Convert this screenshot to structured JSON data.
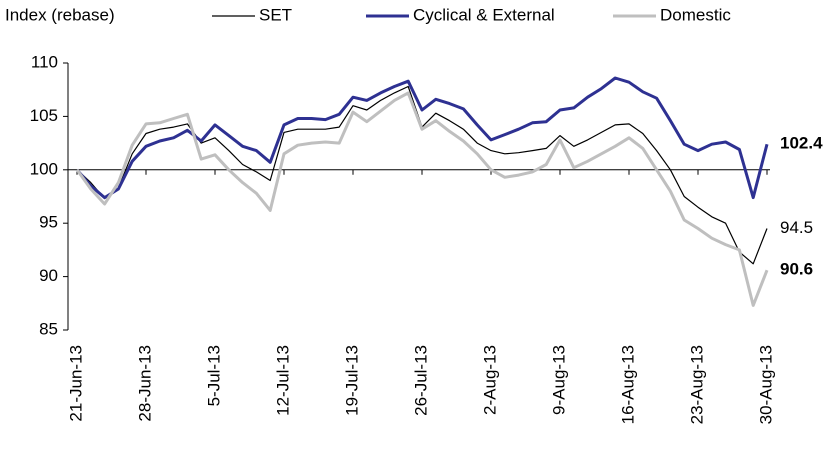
{
  "chart_data": {
    "type": "line",
    "title": "Index (rebase)",
    "categories": [
      "21-Jun-13",
      null,
      null,
      null,
      null,
      "28-Jun-13",
      null,
      null,
      null,
      null,
      "5-Jul-13",
      null,
      null,
      null,
      null,
      "12-Jul-13",
      null,
      null,
      null,
      null,
      "19-Jul-13",
      null,
      null,
      null,
      null,
      "26-Jul-13",
      null,
      null,
      null,
      null,
      "2-Aug-13",
      null,
      null,
      null,
      null,
      "9-Aug-13",
      null,
      null,
      null,
      null,
      "16-Aug-13",
      null,
      null,
      null,
      null,
      "23-Aug-13",
      null,
      null,
      null,
      null,
      "30-Aug-13"
    ],
    "series": [
      {
        "name": "SET",
        "color": "#000000",
        "width": 1.2,
        "values": [
          100,
          98.8,
          97.3,
          98.3,
          101.5,
          103.4,
          103.8,
          104,
          104.3,
          102.5,
          103,
          101.8,
          100.5,
          99.8,
          99,
          103.5,
          103.8,
          103.8,
          103.8,
          104,
          106,
          105.6,
          106.5,
          107.2,
          107.8,
          104,
          105.3,
          104.6,
          103.8,
          102.5,
          101.8,
          101.5,
          101.6,
          101.8,
          102,
          103.2,
          102.2,
          102.8,
          103.5,
          104.2,
          104.3,
          103.4,
          101.8,
          100,
          97.5,
          96.5,
          95.6,
          95,
          92.3,
          91.2,
          94.5
        ]
      },
      {
        "name": "Cyclical & External",
        "color": "#2e3192",
        "width": 3,
        "values": [
          100,
          98.5,
          97.4,
          98.2,
          100.8,
          102.2,
          102.7,
          103,
          103.7,
          102.7,
          104.2,
          103.2,
          102.2,
          101.8,
          100.7,
          104.2,
          104.8,
          104.8,
          104.7,
          105.2,
          106.8,
          106.5,
          107.2,
          107.8,
          108.3,
          105.6,
          106.6,
          106.2,
          105.7,
          104.2,
          102.8,
          103.3,
          103.8,
          104.4,
          104.5,
          105.6,
          105.8,
          106.8,
          107.6,
          108.6,
          108.2,
          107.3,
          106.7,
          104.6,
          102.4,
          101.8,
          102.4,
          102.6,
          101.9,
          97.4,
          102.4
        ]
      },
      {
        "name": "Domestic",
        "color": "#bfbfbf",
        "width": 3,
        "values": [
          100,
          98.2,
          96.8,
          98.8,
          102.3,
          104.3,
          104.4,
          104.8,
          105.2,
          101,
          101.4,
          100,
          98.8,
          97.8,
          96.2,
          101.5,
          102.3,
          102.5,
          102.6,
          102.5,
          105.4,
          104.5,
          105.5,
          106.5,
          107.2,
          103.8,
          104.6,
          103.6,
          102.7,
          101.5,
          100,
          99.3,
          99.5,
          99.8,
          100.5,
          102.8,
          100.2,
          100.8,
          101.5,
          102.2,
          103,
          102,
          100,
          98,
          95.3,
          94.5,
          93.6,
          93,
          92.5,
          87.3,
          90.6
        ]
      }
    ],
    "ylim": [
      85,
      110
    ],
    "yticks": [
      85,
      90,
      95,
      100,
      105,
      110
    ],
    "x_axis_crosses": 100,
    "grid": false,
    "legend": "top"
  }
}
